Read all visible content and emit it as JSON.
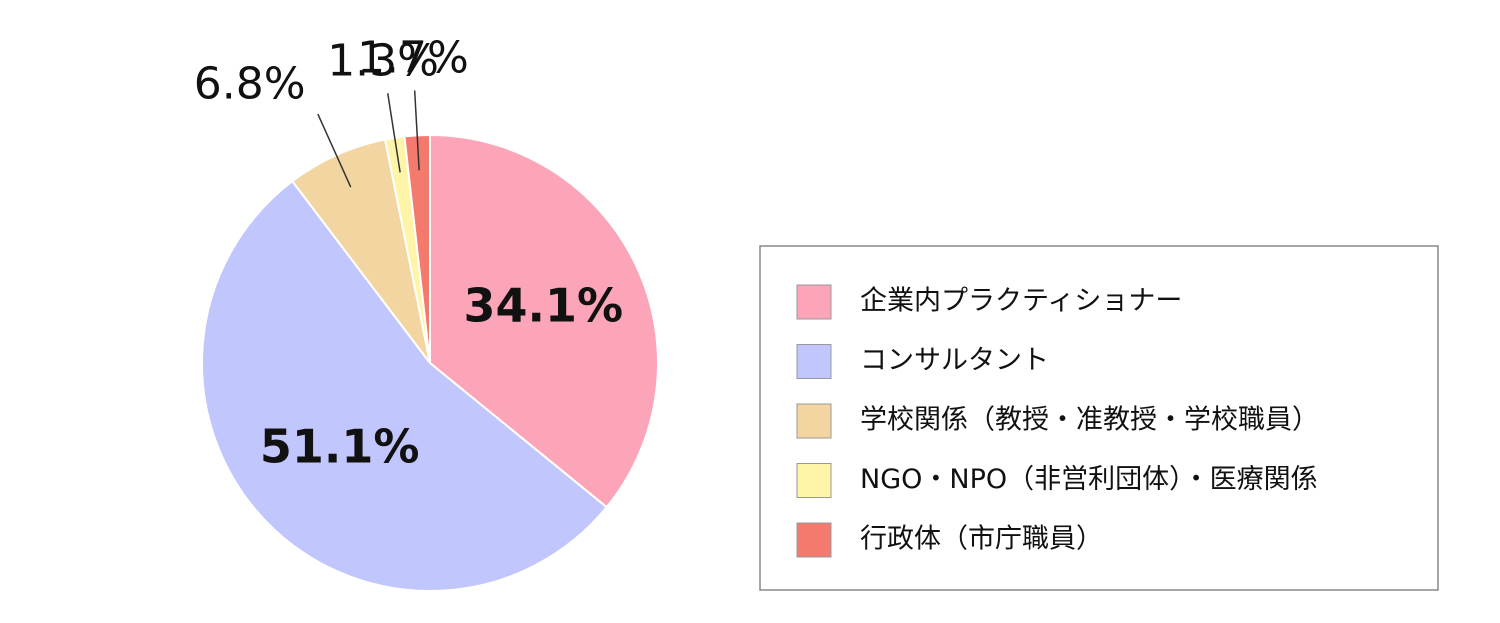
{
  "chart_data": {
    "type": "pie",
    "categories": [
      "企業内プラクティショナー",
      "コンサルタント",
      "学校関係（教授・准教授・学校職員）",
      "NGO・NPO（非営利団体）・医療関係",
      "行政体（市庁職員）"
    ],
    "values": [
      34.1,
      51.1,
      6.8,
      1.3,
      1.7
    ],
    "value_labels": [
      "34.1%",
      "51.1%",
      "6.8%",
      "1.3%",
      "1.7%"
    ],
    "colors": [
      "#fca5b8",
      "#c1c6fc",
      "#f2d5a0",
      "#fef5a8",
      "#f47a6e"
    ],
    "legend": "right"
  }
}
